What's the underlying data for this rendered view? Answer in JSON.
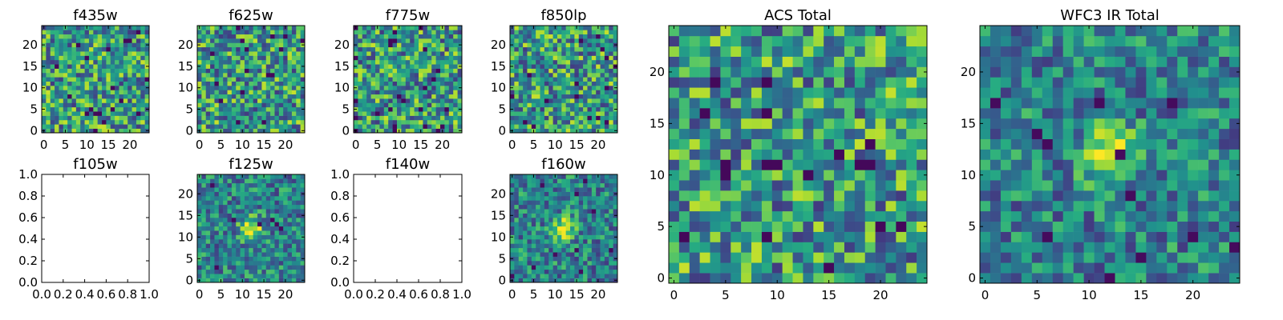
{
  "chart_data": [
    {
      "type": "heatmap",
      "title": "f435w",
      "has_image": true,
      "grid_size": 25,
      "xlim": [
        -0.5,
        24.5
      ],
      "ylim": [
        -0.5,
        24.5
      ],
      "xticks": [
        "0",
        "5",
        "10",
        "15",
        "20"
      ],
      "yticks": [
        "0",
        "5",
        "10",
        "15",
        "20"
      ],
      "colormap": "viridis",
      "pattern": "noise"
    },
    {
      "type": "heatmap",
      "title": "f625w",
      "has_image": true,
      "grid_size": 25,
      "xlim": [
        -0.5,
        24.5
      ],
      "ylim": [
        -0.5,
        24.5
      ],
      "xticks": [
        "0",
        "5",
        "10",
        "15",
        "20"
      ],
      "yticks": [
        "0",
        "5",
        "10",
        "15",
        "20"
      ],
      "colormap": "viridis",
      "pattern": "noise"
    },
    {
      "type": "heatmap",
      "title": "f775w",
      "has_image": true,
      "grid_size": 25,
      "xlim": [
        -0.5,
        24.5
      ],
      "ylim": [
        -0.5,
        24.5
      ],
      "xticks": [
        "0",
        "5",
        "10",
        "15",
        "20"
      ],
      "yticks": [
        "0",
        "5",
        "10",
        "15",
        "20"
      ],
      "colormap": "viridis",
      "pattern": "noise"
    },
    {
      "type": "heatmap",
      "title": "f850lp",
      "has_image": true,
      "grid_size": 25,
      "xlim": [
        -0.5,
        24.5
      ],
      "ylim": [
        -0.5,
        24.5
      ],
      "xticks": [
        "0",
        "5",
        "10",
        "15",
        "20"
      ],
      "yticks": [
        "0",
        "5",
        "10",
        "15",
        "20"
      ],
      "colormap": "viridis",
      "pattern": "noise"
    },
    {
      "type": "heatmap",
      "title": "f105w",
      "has_image": false,
      "xlim": [
        0,
        1
      ],
      "ylim": [
        0,
        1
      ],
      "xticks": [
        "0.0",
        "0.2",
        "0.4",
        "0.6",
        "0.8",
        "1.0"
      ],
      "yticks": [
        "0.0",
        "0.2",
        "0.4",
        "0.6",
        "0.8",
        "1.0"
      ]
    },
    {
      "type": "heatmap",
      "title": "f125w",
      "has_image": true,
      "grid_size": 25,
      "xlim": [
        -0.5,
        24.5
      ],
      "ylim": [
        -0.5,
        24.5
      ],
      "xticks": [
        "0",
        "5",
        "10",
        "15",
        "20"
      ],
      "yticks": [
        "0",
        "5",
        "10",
        "15",
        "20"
      ],
      "colormap": "viridis",
      "pattern": "source",
      "source_center": [
        12,
        12
      ]
    },
    {
      "type": "heatmap",
      "title": "f140w",
      "has_image": false,
      "xlim": [
        0,
        1
      ],
      "ylim": [
        0,
        1
      ],
      "xticks": [
        "0.0",
        "0.2",
        "0.4",
        "0.6",
        "0.8",
        "1.0"
      ],
      "yticks": [
        "0.0",
        "0.2",
        "0.4",
        "0.6",
        "0.8",
        "1.0"
      ]
    },
    {
      "type": "heatmap",
      "title": "f160w",
      "has_image": true,
      "grid_size": 25,
      "xlim": [
        -0.5,
        24.5
      ],
      "ylim": [
        -0.5,
        24.5
      ],
      "xticks": [
        "0",
        "5",
        "10",
        "15",
        "20"
      ],
      "yticks": [
        "0",
        "5",
        "10",
        "15",
        "20"
      ],
      "colormap": "viridis",
      "pattern": "source",
      "source_center": [
        12,
        12
      ]
    },
    {
      "type": "heatmap",
      "title": "ACS Total",
      "has_image": true,
      "grid_size": 25,
      "xlim": [
        -0.5,
        24.5
      ],
      "ylim": [
        -0.5,
        24.5
      ],
      "xticks": [
        "0",
        "5",
        "10",
        "15",
        "20"
      ],
      "yticks": [
        "0",
        "5",
        "10",
        "15",
        "20"
      ],
      "colormap": "viridis",
      "pattern": "noise"
    },
    {
      "type": "heatmap",
      "title": "WFC3 IR Total",
      "has_image": true,
      "grid_size": 25,
      "xlim": [
        -0.5,
        24.5
      ],
      "ylim": [
        -0.5,
        24.5
      ],
      "xticks": [
        "0",
        "5",
        "10",
        "15",
        "20"
      ],
      "yticks": [
        "0",
        "5",
        "10",
        "15",
        "20"
      ],
      "colormap": "viridis",
      "pattern": "source",
      "source_center": [
        12,
        12
      ]
    }
  ]
}
